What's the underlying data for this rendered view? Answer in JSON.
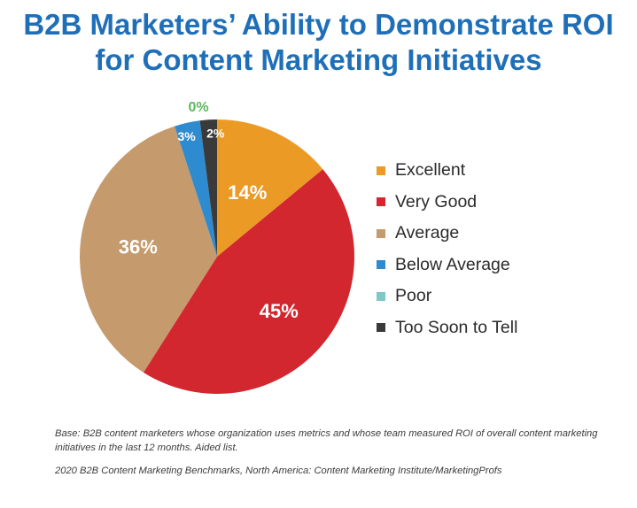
{
  "chart_data": {
    "type": "pie",
    "title_lines": [
      "B2B Marketers’ Ability to Demonstrate ROI",
      "for Content Marketing Initiatives"
    ],
    "slices": [
      {
        "key": "excellent",
        "label": "Excellent",
        "value": 14,
        "display": "14%",
        "color": "#ec9a26"
      },
      {
        "key": "very-good",
        "label": "Very Good",
        "value": 45,
        "display": "45%",
        "color": "#d2272e"
      },
      {
        "key": "average",
        "label": "Average",
        "value": 36,
        "display": "36%",
        "color": "#c59a6c"
      },
      {
        "key": "below-average",
        "label": "Below Average",
        "value": 3,
        "display": "3%",
        "color": "#2e8bd0"
      },
      {
        "key": "poor",
        "label": "Poor",
        "value": 0,
        "display": "0%",
        "color": "#7fc8c8",
        "label_color": "#5cb85c"
      },
      {
        "key": "too-soon",
        "label": "Too Soon to Tell",
        "value": 2,
        "display": "2%",
        "color": "#3a3a3a"
      }
    ],
    "legend_position": "right"
  },
  "footnotes": {
    "base": "Base: B2B content marketers whose organization uses metrics and whose team measured ROI of overall content marketing initiatives in the last 12 months. Aided list.",
    "source": "2020 B2B Content Marketing Benchmarks, North America: Content Marketing Institute/MarketingProfs"
  }
}
